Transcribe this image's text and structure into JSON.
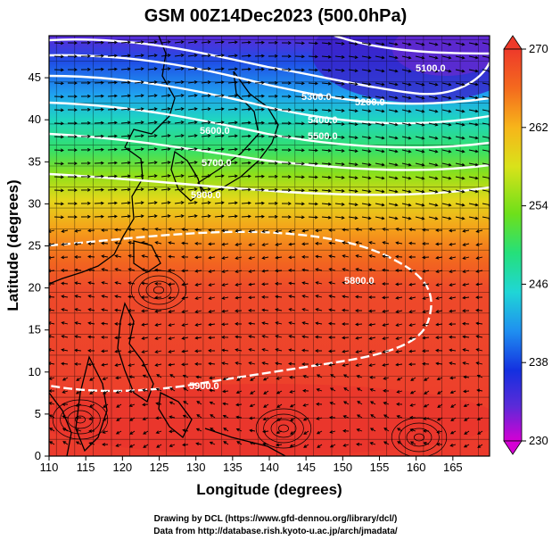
{
  "title": "GSM 00Z14Dec2023 (500.0hPa)",
  "x_axis_label": "Longitude (degrees)",
  "y_axis_label": "Latitude  (degrees)",
  "x_ticks": [
    "110",
    "115",
    "120",
    "125",
    "130",
    "135",
    "140",
    "145",
    "150",
    "155",
    "160",
    "165"
  ],
  "y_ticks": [
    "0",
    "5",
    "10",
    "15",
    "20",
    "25",
    "30",
    "35",
    "40",
    "45"
  ],
  "colorbar_ticks": [
    "270",
    "262",
    "254",
    "246",
    "238",
    "230"
  ],
  "contour_labels": [
    "5100.0",
    "5200.0",
    "5300.0",
    "5400.0",
    "5500.0",
    "5600.0",
    "5700.0",
    "5800.0",
    "5900.0",
    "5800.0"
  ],
  "credits": {
    "line1": "Drawing by DCL (https://www.gfd-dennou.org/library/dcl/)",
    "line2": "Data from http://database.rish.kyoto-u.ac.jp/arch/jmadata/"
  },
  "map_data": {
    "lon_range": [
      110,
      170
    ],
    "lat_range": [
      0,
      50
    ],
    "temperature_range_K": [
      230,
      270
    ],
    "height_contours_m": [
      5100,
      5200,
      5300,
      5400,
      5500,
      5600,
      5700,
      5800,
      5900
    ],
    "colormap": [
      "#d400d4",
      "#5a2bd8",
      "#1430e0",
      "#1f8ff0",
      "#1fd6d6",
      "#25e07a",
      "#6ee01a",
      "#d9e21a",
      "#f7b51a",
      "#f46a1e",
      "#ee3a2a"
    ]
  }
}
